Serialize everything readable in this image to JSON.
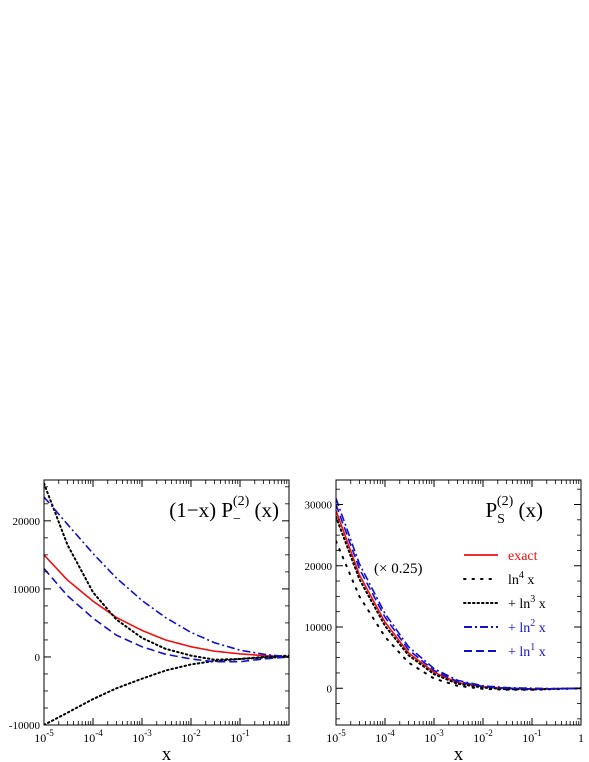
{
  "chart_data": [
    {
      "type": "line",
      "panel": "left",
      "title_main": "(1−x) P",
      "title_sub": "−",
      "title_sup": "(2)",
      "title_tail": " (x)",
      "xlabel": "x",
      "xscale": "log",
      "xlim": [
        1e-05,
        1
      ],
      "ylim": [
        -10000,
        26000
      ],
      "x_ticks": [
        {
          "base": "10",
          "exp": "-5"
        },
        {
          "base": "10",
          "exp": "-4"
        },
        {
          "base": "10",
          "exp": "-3"
        },
        {
          "base": "10",
          "exp": "-2"
        },
        {
          "base": "10",
          "exp": "-1"
        },
        {
          "base": "1",
          "exp": ""
        }
      ],
      "y_ticks": [
        "-10000",
        "0",
        "10000",
        "20000"
      ],
      "series": [
        {
          "style": "solid",
          "color": "#ee1111",
          "x": [
            1e-05,
            3e-05,
            0.0001,
            0.0003,
            0.001,
            0.003,
            0.01,
            0.03,
            0.1,
            0.3,
            1
          ],
          "y": [
            15000,
            11300,
            8200,
            5800,
            3900,
            2500,
            1500,
            850,
            450,
            200,
            0
          ]
        },
        {
          "style": "dotted",
          "color": "#000000",
          "x": [
            1e-05,
            3e-05,
            0.0001,
            0.0003,
            0.001,
            0.003,
            0.01,
            0.03,
            0.1,
            0.3,
            1
          ],
          "y": [
            25500,
            16500,
            9500,
            5500,
            2800,
            1200,
            200,
            -400,
            -300,
            0,
            200
          ]
        },
        {
          "style": "dotted",
          "color": "#000000",
          "x": [
            1e-05,
            3e-05,
            0.0001,
            0.0003,
            0.001,
            0.003,
            0.01,
            0.03,
            0.1,
            0.3,
            1
          ],
          "y": [
            -10000,
            -8200,
            -6200,
            -4600,
            -3200,
            -2000,
            -1100,
            -600,
            -300,
            -100,
            0
          ]
        },
        {
          "style": "dashdot",
          "color": "#1111cc",
          "x": [
            1e-05,
            3e-05,
            0.0001,
            0.0003,
            0.001,
            0.003,
            0.01,
            0.03,
            0.1,
            0.3,
            1
          ],
          "y": [
            23500,
            19500,
            15200,
            11600,
            8300,
            5800,
            3600,
            2100,
            1000,
            400,
            0
          ]
        },
        {
          "style": "dashed",
          "color": "#1111cc",
          "x": [
            1e-05,
            3e-05,
            0.0001,
            0.0003,
            0.001,
            0.003,
            0.01,
            0.03,
            0.1,
            0.3,
            1
          ],
          "y": [
            13000,
            9000,
            5700,
            3200,
            1500,
            400,
            -300,
            -700,
            -700,
            -300,
            0
          ]
        }
      ]
    },
    {
      "type": "line",
      "panel": "right",
      "title_main": "P",
      "title_sub": "S",
      "title_sup": "(2)",
      "title_tail": " (x)",
      "annotation": "(× 0.25)",
      "xlabel": "x",
      "xscale": "log",
      "xlim": [
        1e-05,
        1
      ],
      "ylim": [
        -6000,
        34000
      ],
      "x_ticks": [
        {
          "base": "10",
          "exp": "-5"
        },
        {
          "base": "10",
          "exp": "-4"
        },
        {
          "base": "10",
          "exp": "-3"
        },
        {
          "base": "10",
          "exp": "-2"
        },
        {
          "base": "10",
          "exp": "-1"
        },
        {
          "base": "1",
          "exp": ""
        }
      ],
      "y_ticks": [
        "0",
        "10000",
        "20000",
        "30000"
      ],
      "legend": [
        {
          "text": "exact",
          "sup": "",
          "tail": "",
          "style": "solid",
          "color": "#ee1111"
        },
        {
          "text": "ln",
          "sup": "4",
          "tail": " x",
          "style": "sparse",
          "color": "#000000"
        },
        {
          "text": "+ ln",
          "sup": "3",
          "tail": " x",
          "style": "dotted",
          "color": "#000000"
        },
        {
          "text": "+ ln",
          "sup": "2",
          "tail": " x",
          "style": "dashdot",
          "color": "#1111cc"
        },
        {
          "text": "+ ln",
          "sup": "1",
          "tail": " x",
          "style": "dashed",
          "color": "#1111cc"
        }
      ],
      "series": [
        {
          "style": "solid",
          "color": "#ee1111",
          "x": [
            1e-05,
            3e-05,
            0.0001,
            0.0003,
            0.001,
            0.003,
            0.01,
            0.03,
            0.1,
            0.3,
            1
          ],
          "y": [
            29000,
            18500,
            10800,
            5800,
            2600,
            950,
            250,
            0,
            -120,
            -100,
            0
          ]
        },
        {
          "style": "sparse",
          "color": "#000000",
          "x": [
            1e-05,
            3e-05,
            0.0001,
            0.0003,
            0.001,
            0.003,
            0.01,
            0.03,
            0.1,
            0.3,
            1
          ],
          "y": [
            24000,
            15000,
            8400,
            4200,
            1600,
            400,
            -100,
            -250,
            -250,
            -150,
            0
          ]
        },
        {
          "style": "dotted",
          "color": "#000000",
          "x": [
            1e-05,
            3e-05,
            0.0001,
            0.0003,
            0.001,
            0.003,
            0.01,
            0.03,
            0.1,
            0.3,
            1
          ],
          "y": [
            28000,
            17800,
            10200,
            5400,
            2300,
            750,
            100,
            -150,
            -200,
            -100,
            0
          ]
        },
        {
          "style": "dashdot",
          "color": "#1111cc",
          "x": [
            1e-05,
            3e-05,
            0.0001,
            0.0003,
            0.001,
            0.003,
            0.01,
            0.03,
            0.1,
            0.3,
            1
          ],
          "y": [
            31000,
            20300,
            12200,
            6800,
            3200,
            1300,
            400,
            100,
            0,
            -50,
            0
          ]
        },
        {
          "style": "dashed",
          "color": "#1111cc",
          "x": [
            1e-05,
            3e-05,
            0.0001,
            0.0003,
            0.001,
            0.003,
            0.01,
            0.03,
            0.1,
            0.3,
            1
          ],
          "y": [
            30000,
            19500,
            11600,
            6300,
            2900,
            1100,
            300,
            0,
            -100,
            -80,
            0
          ]
        }
      ]
    }
  ]
}
